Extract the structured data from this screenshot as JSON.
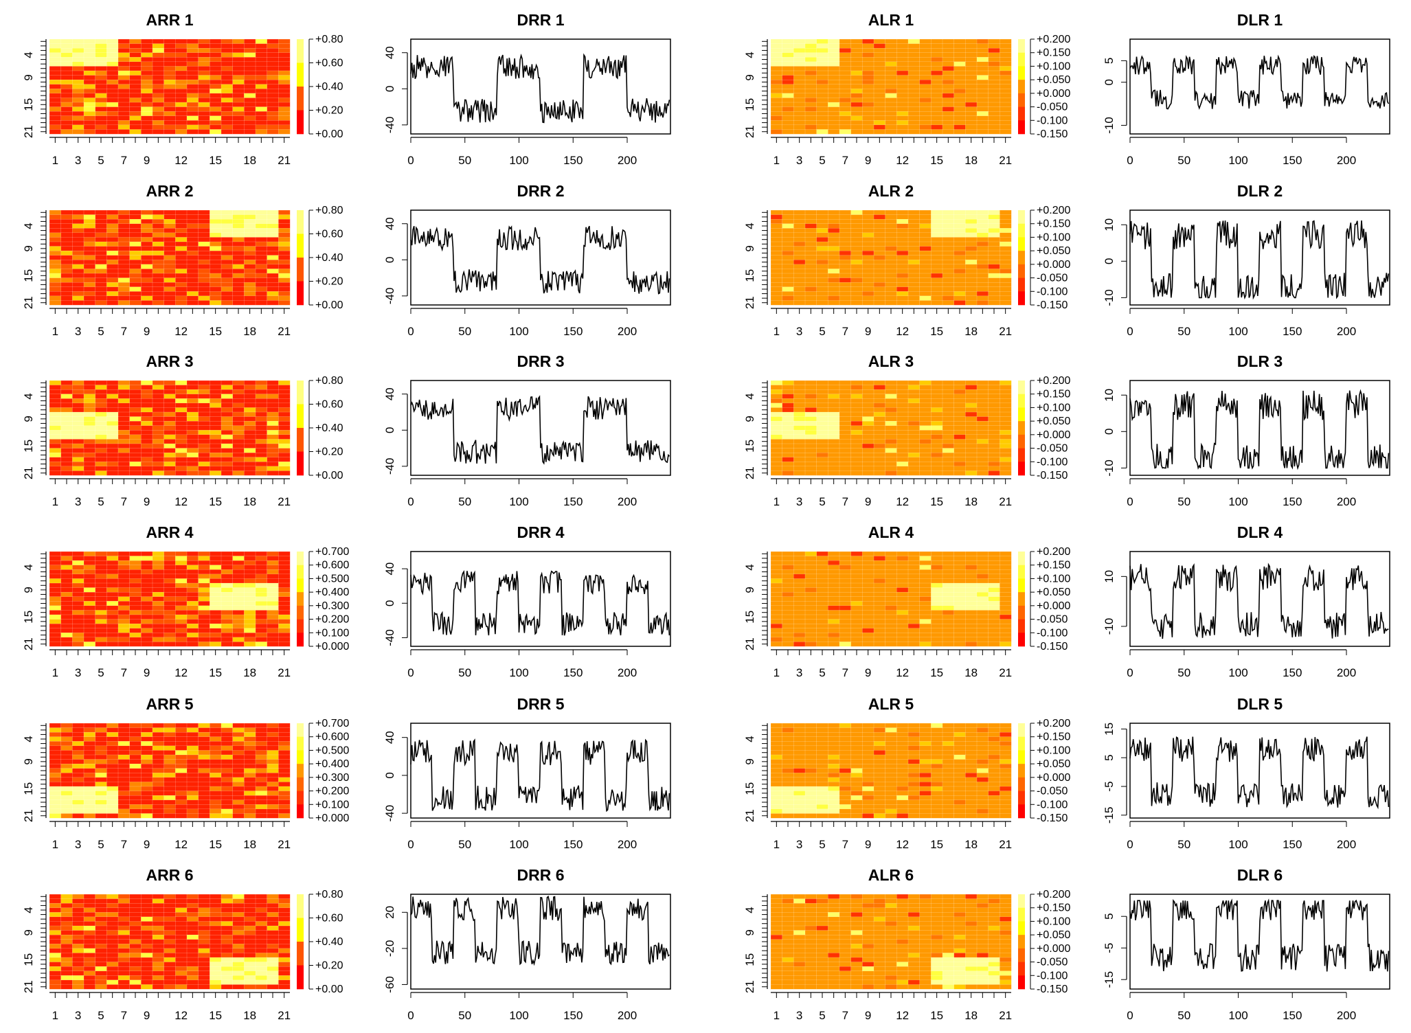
{
  "figure": {
    "colors": {
      "heat_palette": [
        "#ff0000",
        "#ff5500",
        "#ffaa00",
        "#ffff00",
        "#ffff80"
      ],
      "alr_palette": [
        "#ff0000",
        "#ff3300",
        "#ff6600",
        "#ff9900",
        "#ffcc00",
        "#ffff00",
        "#ffff40",
        "#ffff99"
      ],
      "line": "#000000"
    }
  },
  "chart_data": [
    {
      "type": "heatmap",
      "title": "ARR 1",
      "xticks": [
        "1",
        "3",
        "5",
        "7",
        "9",
        "12",
        "15",
        "18",
        "21"
      ],
      "yticks": [
        "4",
        "9",
        "15",
        "21"
      ],
      "legend_labels": [
        "+0.80",
        "+0.60",
        "+0.40",
        "+0.20",
        "+0.00"
      ],
      "zlim": [
        0,
        0.8
      ],
      "block": {
        "rows": [
          1,
          6
        ],
        "cols": [
          1,
          6
        ]
      },
      "background": "red"
    },
    {
      "type": "line",
      "title": "DRR 1",
      "xticks": [
        "0",
        "50",
        "100",
        "150",
        "200"
      ],
      "yticks": [
        "40",
        "0",
        "-40"
      ],
      "xlim": [
        0,
        240
      ],
      "ylim": [
        -50,
        55
      ],
      "period": 80,
      "amplitude": 30
    },
    {
      "type": "heatmap",
      "title": "ALR 1",
      "xticks": [
        "1",
        "3",
        "5",
        "7",
        "9",
        "12",
        "15",
        "18",
        "21"
      ],
      "yticks": [
        "4",
        "9",
        "15",
        "21"
      ],
      "legend_labels": [
        "+0.200",
        "+0.150",
        "+0.100",
        "+0.050",
        "+0.000",
        "-0.050",
        "-0.100",
        "-0.150"
      ],
      "zlim": [
        -0.15,
        0.2
      ],
      "block": {
        "rows": [
          1,
          6
        ],
        "cols": [
          1,
          6
        ]
      },
      "background": "orange"
    },
    {
      "type": "line",
      "title": "DLR 1",
      "xticks": [
        "0",
        "50",
        "100",
        "150",
        "200"
      ],
      "yticks": [
        "5",
        "0",
        "-10"
      ],
      "xlim": [
        0,
        240
      ],
      "ylim": [
        -12,
        10
      ],
      "period": 40,
      "amplitude": 5
    },
    {
      "type": "heatmap",
      "title": "ARR 2",
      "xticks": [
        "1",
        "3",
        "5",
        "7",
        "9",
        "12",
        "15",
        "18",
        "21"
      ],
      "yticks": [
        "4",
        "9",
        "15",
        "21"
      ],
      "legend_labels": [
        "+0.80",
        "+0.60",
        "+0.40",
        "+0.20",
        "+0.00"
      ],
      "zlim": [
        0,
        0.8
      ],
      "block": {
        "rows": [
          1,
          6
        ],
        "cols": [
          15,
          20
        ]
      },
      "background": "red"
    },
    {
      "type": "line",
      "title": "DRR 2",
      "xticks": [
        "0",
        "50",
        "100",
        "150",
        "200"
      ],
      "yticks": [
        "40",
        "0",
        "-40"
      ],
      "xlim": [
        0,
        240
      ],
      "ylim": [
        -50,
        55
      ],
      "period": 80,
      "amplitude": 30
    },
    {
      "type": "heatmap",
      "title": "ALR 2",
      "xticks": [
        "1",
        "3",
        "5",
        "7",
        "9",
        "12",
        "15",
        "18",
        "21"
      ],
      "yticks": [
        "4",
        "9",
        "15",
        "21"
      ],
      "legend_labels": [
        "+0.200",
        "+0.150",
        "+0.100",
        "+0.050",
        "+0.000",
        "-0.050",
        "-0.100",
        "-0.150"
      ],
      "zlim": [
        -0.15,
        0.2
      ],
      "block": {
        "rows": [
          1,
          6
        ],
        "cols": [
          15,
          20
        ]
      },
      "background": "orange"
    },
    {
      "type": "line",
      "title": "DLR 2",
      "xticks": [
        "0",
        "50",
        "100",
        "150",
        "200"
      ],
      "yticks": [
        "10",
        "0",
        "-10"
      ],
      "xlim": [
        0,
        240
      ],
      "ylim": [
        -12,
        14
      ],
      "period": 40,
      "amplitude": 9
    },
    {
      "type": "heatmap",
      "title": "ARR 3",
      "xticks": [
        "1",
        "3",
        "5",
        "7",
        "9",
        "12",
        "15",
        "18",
        "21"
      ],
      "yticks": [
        "4",
        "9",
        "15",
        "21"
      ],
      "legend_labels": [
        "+0.80",
        "+0.60",
        "+0.40",
        "+0.20",
        "+0.00"
      ],
      "zlim": [
        0,
        0.8
      ],
      "block": {
        "rows": [
          8,
          13
        ],
        "cols": [
          1,
          6
        ]
      },
      "background": "red"
    },
    {
      "type": "line",
      "title": "DRR 3",
      "xticks": [
        "0",
        "50",
        "100",
        "150",
        "200"
      ],
      "yticks": [
        "40",
        "0",
        "-40"
      ],
      "xlim": [
        0,
        240
      ],
      "ylim": [
        -50,
        55
      ],
      "period": 80,
      "amplitude": 30
    },
    {
      "type": "heatmap",
      "title": "ALR 3",
      "xticks": [
        "1",
        "3",
        "5",
        "7",
        "9",
        "12",
        "15",
        "18",
        "21"
      ],
      "yticks": [
        "4",
        "9",
        "15",
        "21"
      ],
      "legend_labels": [
        "+0.200",
        "+0.150",
        "+0.100",
        "+0.050",
        "+0.000",
        "-0.050",
        "-0.100",
        "-0.150"
      ],
      "zlim": [
        -0.15,
        0.2
      ],
      "block": {
        "rows": [
          8,
          13
        ],
        "cols": [
          1,
          6
        ]
      },
      "background": "orange"
    },
    {
      "type": "line",
      "title": "DLR 3",
      "xticks": [
        "0",
        "50",
        "100",
        "150",
        "200"
      ],
      "yticks": [
        "10",
        "0",
        "-10"
      ],
      "xlim": [
        0,
        240
      ],
      "ylim": [
        -12,
        14
      ],
      "period": 40,
      "amplitude": 9
    },
    {
      "type": "heatmap",
      "title": "ARR 4",
      "xticks": [
        "1",
        "3",
        "5",
        "7",
        "9",
        "12",
        "15",
        "18",
        "21"
      ],
      "yticks": [
        "4",
        "9",
        "15",
        "21"
      ],
      "legend_labels": [
        "+0.700",
        "+0.600",
        "+0.500",
        "+0.400",
        "+0.300",
        "+0.200",
        "+0.100",
        "+0.000"
      ],
      "zlim": [
        0,
        0.7
      ],
      "block": {
        "rows": [
          8,
          13
        ],
        "cols": [
          15,
          20
        ]
      },
      "background": "red"
    },
    {
      "type": "line",
      "title": "DRR 4",
      "xticks": [
        "0",
        "50",
        "100",
        "150",
        "200"
      ],
      "yticks": [
        "40",
        "0",
        "-40"
      ],
      "xlim": [
        0,
        240
      ],
      "ylim": [
        -50,
        60
      ],
      "period": 40,
      "amplitude": 30
    },
    {
      "type": "heatmap",
      "title": "ALR 4",
      "xticks": [
        "1",
        "3",
        "5",
        "7",
        "9",
        "12",
        "15",
        "18",
        "21"
      ],
      "yticks": [
        "4",
        "9",
        "15",
        "21"
      ],
      "legend_labels": [
        "+0.200",
        "+0.150",
        "+0.100",
        "+0.050",
        "+0.000",
        "-0.050",
        "-0.100",
        "-0.150"
      ],
      "zlim": [
        -0.15,
        0.2
      ],
      "block": {
        "rows": [
          8,
          13
        ],
        "cols": [
          15,
          20
        ]
      },
      "background": "orange"
    },
    {
      "type": "line",
      "title": "DLR 4",
      "xticks": [
        "0",
        "50",
        "100",
        "150",
        "200"
      ],
      "yticks": [
        "10",
        "-10"
      ],
      "xlim": [
        0,
        240
      ],
      "ylim": [
        -18,
        20
      ],
      "period": 40,
      "amplitude": 12
    },
    {
      "type": "heatmap",
      "title": "ARR 5",
      "xticks": [
        "1",
        "3",
        "5",
        "7",
        "9",
        "12",
        "15",
        "18",
        "21"
      ],
      "yticks": [
        "4",
        "9",
        "15",
        "21"
      ],
      "legend_labels": [
        "+0.700",
        "+0.600",
        "+0.500",
        "+0.400",
        "+0.300",
        "+0.200",
        "+0.100",
        "+0.000"
      ],
      "zlim": [
        0,
        0.7
      ],
      "block": {
        "rows": [
          15,
          20
        ],
        "cols": [
          1,
          6
        ]
      },
      "background": "red"
    },
    {
      "type": "line",
      "title": "DRR 5",
      "xticks": [
        "0",
        "50",
        "100",
        "150",
        "200"
      ],
      "yticks": [
        "40",
        "0",
        "-40"
      ],
      "xlim": [
        0,
        240
      ],
      "ylim": [
        -45,
        55
      ],
      "period": 40,
      "amplitude": 30
    },
    {
      "type": "heatmap",
      "title": "ALR 5",
      "xticks": [
        "1",
        "3",
        "5",
        "7",
        "9",
        "12",
        "15",
        "18",
        "21"
      ],
      "yticks": [
        "4",
        "9",
        "15",
        "21"
      ],
      "legend_labels": [
        "+0.200",
        "+0.150",
        "+0.100",
        "+0.050",
        "+0.000",
        "-0.050",
        "-0.100",
        "-0.150"
      ],
      "zlim": [
        -0.15,
        0.2
      ],
      "block": {
        "rows": [
          15,
          20
        ],
        "cols": [
          1,
          6
        ]
      },
      "background": "orange"
    },
    {
      "type": "line",
      "title": "DLR 5",
      "xticks": [
        "0",
        "50",
        "100",
        "150",
        "200"
      ],
      "yticks": [
        "15",
        "5",
        "-5",
        "-15"
      ],
      "xlim": [
        0,
        240
      ],
      "ylim": [
        -16,
        17
      ],
      "period": 40,
      "amplitude": 10
    },
    {
      "type": "heatmap",
      "title": "ARR 6",
      "xticks": [
        "1",
        "3",
        "5",
        "7",
        "9",
        "12",
        "15",
        "18",
        "21"
      ],
      "yticks": [
        "4",
        "9",
        "15",
        "21"
      ],
      "legend_labels": [
        "+0.80",
        "+0.60",
        "+0.40",
        "+0.20",
        "+0.00"
      ],
      "zlim": [
        0,
        0.8
      ],
      "block": {
        "rows": [
          15,
          20
        ],
        "cols": [
          15,
          20
        ]
      },
      "background": "red"
    },
    {
      "type": "line",
      "title": "DRR 6",
      "xticks": [
        "0",
        "50",
        "100",
        "150",
        "200"
      ],
      "yticks": [
        "20",
        "-20",
        "-60"
      ],
      "xlim": [
        0,
        240
      ],
      "ylim": [
        -65,
        40
      ],
      "period": 40,
      "amplitude": 30
    },
    {
      "type": "heatmap",
      "title": "ALR 6",
      "xticks": [
        "1",
        "3",
        "5",
        "7",
        "9",
        "12",
        "15",
        "18",
        "21"
      ],
      "yticks": [
        "4",
        "9",
        "15",
        "21"
      ],
      "legend_labels": [
        "+0.200",
        "+0.150",
        "+0.100",
        "+0.050",
        "+0.000",
        "-0.050",
        "-0.100",
        "-0.150"
      ],
      "zlim": [
        -0.15,
        0.2
      ],
      "block": {
        "rows": [
          15,
          20
        ],
        "cols": [
          15,
          20
        ]
      },
      "background": "orange"
    },
    {
      "type": "line",
      "title": "DLR 6",
      "xticks": [
        "0",
        "50",
        "100",
        "150",
        "200"
      ],
      "yticks": [
        "5",
        "-5",
        "-15"
      ],
      "xlim": [
        0,
        240
      ],
      "ylim": [
        -18,
        12
      ],
      "period": 40,
      "amplitude": 10
    }
  ]
}
